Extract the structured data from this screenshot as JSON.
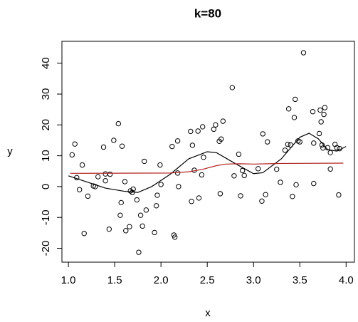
{
  "chart_data": {
    "type": "scatter",
    "title": "k=80",
    "xlabel": "x",
    "ylabel": "y",
    "xlim": [
      0.93,
      4.09
    ],
    "ylim": [
      -24.5,
      47.1
    ],
    "xticks": [
      {
        "value": 1,
        "label": "1.0"
      },
      {
        "value": 1.5,
        "label": "1.5"
      },
      {
        "value": 2,
        "label": "2.0"
      },
      {
        "value": 2.5,
        "label": "2.5"
      },
      {
        "value": 3,
        "label": "3.0"
      },
      {
        "value": 3.5,
        "label": "3.5"
      },
      {
        "value": 4,
        "label": "4.0"
      }
    ],
    "yticks": [
      -20,
      -10,
      0,
      10,
      20,
      30,
      40
    ],
    "series": [
      {
        "kind": "points",
        "color": "#000000",
        "x": [
          1.04,
          1.07,
          1.09,
          1.12,
          1.15,
          1.17,
          1.21,
          1.27,
          1.29,
          1.32,
          1.38,
          1.4,
          1.4,
          1.44,
          1.45,
          1.49,
          1.54,
          1.56,
          1.57,
          1.58,
          1.61,
          1.62,
          1.66,
          1.67,
          1.69,
          1.7,
          1.74,
          1.76,
          1.78,
          1.8,
          1.82,
          1.84,
          1.93,
          1.95,
          1.96,
          1.99,
          2.0,
          2.12,
          2.14,
          2.15,
          2.18,
          2.18,
          2.19,
          2.32,
          2.33,
          2.34,
          2.36,
          2.4,
          2.41,
          2.44,
          2.45,
          2.46,
          2.57,
          2.59,
          2.63,
          2.64,
          2.65,
          2.67,
          2.77,
          2.79,
          2.84,
          2.86,
          2.88,
          2.9,
          3.05,
          3.09,
          3.1,
          3.13,
          3.15,
          3.25,
          3.29,
          3.34,
          3.37,
          3.38,
          3.4,
          3.42,
          3.44,
          3.45,
          3.46,
          3.48,
          3.5,
          3.54,
          3.64,
          3.65,
          3.65,
          3.71,
          3.72,
          3.73,
          3.74,
          3.75,
          3.76,
          3.77,
          3.8,
          3.83,
          3.83,
          3.88,
          3.9,
          3.92,
          3.93
        ],
        "values": [
          10.3,
          13.8,
          2.9,
          -1.0,
          7.0,
          -15.2,
          -3.1,
          0.2,
          0.0,
          3.2,
          12.8,
          1.9,
          4.1,
          -13.8,
          4.0,
          15.0,
          20.4,
          -9.3,
          -5.2,
          13.1,
          1.6,
          -14.3,
          -13.0,
          -1.4,
          -1.9,
          -0.8,
          -4.3,
          -21.3,
          -9.3,
          -12.8,
          8.2,
          -7.6,
          -14.9,
          -6.2,
          -2.8,
          7.0,
          0.7,
          13.0,
          -15.7,
          -16.4,
          14.8,
          4.4,
          0.0,
          17.9,
          -4.8,
          13.4,
          5.3,
          18.0,
          -3.7,
          3.8,
          19.4,
          9.5,
          18.6,
          20.0,
          14.7,
          -2.3,
          15.4,
          21.2,
          32.1,
          3.5,
          10.5,
          -3.0,
          5.2,
          3.6,
          5.8,
          -4.7,
          17.1,
          -2.6,
          14.5,
          5.6,
          1.4,
          11.8,
          13.7,
          25.2,
          13.5,
          -3.2,
          22.4,
          28.3,
          0.6,
          14.8,
          14.5,
          43.4,
          24.3,
          14.1,
          1.0,
          17.2,
          24.8,
          21.0,
          13.5,
          12.5,
          23.4,
          25.6,
          12.6,
          5.7,
          11.0,
          13.7,
          12.6,
          -2.7,
          12.3
        ]
      },
      {
        "kind": "line",
        "color": "#000000",
        "x": [
          1.0,
          1.2,
          1.4,
          1.6,
          1.75,
          1.9,
          2.1,
          2.3,
          2.5,
          2.6,
          2.8,
          3.0,
          3.1,
          3.3,
          3.5,
          3.6,
          3.7,
          3.8,
          3.9,
          4.0
        ],
        "values": [
          3.5,
          1.5,
          -0.5,
          -1.5,
          -1.9,
          0,
          4,
          9,
          11.3,
          11,
          7.5,
          4.2,
          4.5,
          9,
          16,
          17.3,
          15.5,
          12,
          11.5,
          13
        ]
      },
      {
        "kind": "line",
        "color": "#b22222",
        "x": [
          1.02,
          2.1,
          2.3,
          2.45,
          2.6,
          2.7,
          2.85,
          3.0,
          3.3,
          3.97
        ],
        "values": [
          4.3,
          4.4,
          4.8,
          5.6,
          6.8,
          7.3,
          7.4,
          7.3,
          7.5,
          7.6
        ]
      }
    ]
  }
}
